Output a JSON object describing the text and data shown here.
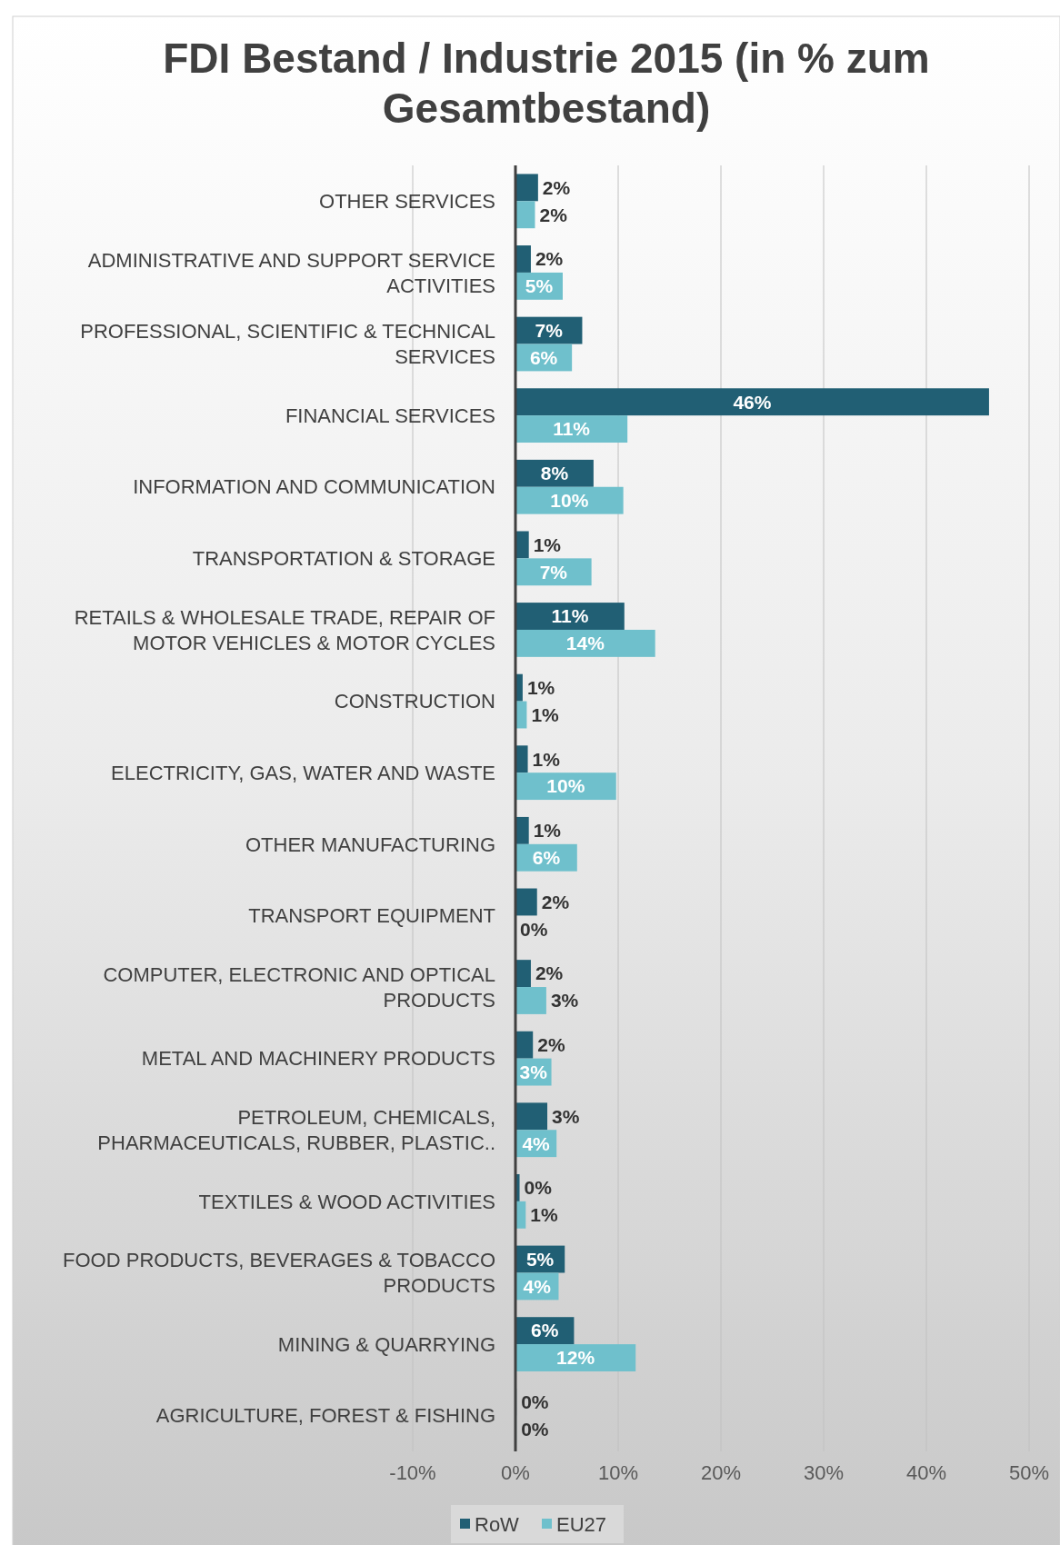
{
  "chart_data": {
    "type": "bar",
    "orientation": "horizontal",
    "title": "FDI Bestand / Industrie 2015 (in % zum Gesamtbestand)",
    "categories": [
      "OTHER SERVICES",
      "ADMINISTRATIVE AND SUPPORT SERVICE ACTIVITIES",
      "PROFESSIONAL, SCIENTIFIC & TECHNICAL SERVICES",
      "FINANCIAL SERVICES",
      "INFORMATION AND COMMUNICATION",
      "TRANSPORTATION & STORAGE",
      "RETAILS & WHOLESALE TRADE, REPAIR OF MOTOR VEHICLES & MOTOR CYCLES",
      "CONSTRUCTION",
      "ELECTRICITY, GAS, WATER AND WASTE",
      "OTHER MANUFACTURING",
      "TRANSPORT EQUIPMENT",
      "COMPUTER, ELECTRONIC AND OPTICAL PRODUCTS",
      "METAL AND MACHINERY PRODUCTS",
      "PETROLEUM, CHEMICALS, PHARMACEUTICALS, RUBBER, PLASTIC..",
      "TEXTILES & WOOD ACTIVITIES",
      "FOOD PRODUCTS, BEVERAGES & TOBACCO PRODUCTS",
      "MINING & QUARRYING",
      "AGRICULTURE, FOREST & FISHING"
    ],
    "series": [
      {
        "name": "RoW",
        "color": "#215f74",
        "values": [
          2.2,
          1.5,
          6.5,
          46.1,
          7.6,
          1.3,
          10.6,
          0.7,
          1.2,
          1.3,
          2.1,
          1.5,
          1.7,
          3.1,
          0.4,
          4.8,
          5.7,
          0.1
        ],
        "value_labels": [
          "2%",
          "2%",
          "7%",
          "46%",
          "8%",
          "1%",
          "11%",
          "1%",
          "1%",
          "1%",
          "2%",
          "2%",
          "2%",
          "3%",
          "0%",
          "5%",
          "6%",
          "0%"
        ]
      },
      {
        "name": "EU27",
        "color": "#6fc0cc",
        "values": [
          1.9,
          4.6,
          5.5,
          10.9,
          10.5,
          7.4,
          13.6,
          1.1,
          9.8,
          6.0,
          0,
          3.0,
          3.5,
          4.0,
          1.0,
          4.2,
          11.7,
          0.1
        ],
        "value_labels": [
          "2%",
          "5%",
          "6%",
          "11%",
          "10%",
          "7%",
          "14%",
          "1%",
          "10%",
          "6%",
          "0%",
          "3%",
          "3%",
          "4%",
          "1%",
          "4%",
          "12%",
          "0%"
        ]
      }
    ],
    "xlim": [
      -10,
      50
    ],
    "xticks": [
      {
        "value": -10,
        "label": "-10%"
      },
      {
        "value": 0,
        "label": "0%"
      },
      {
        "value": 10,
        "label": "10%"
      },
      {
        "value": 20,
        "label": "20%"
      },
      {
        "value": 30,
        "label": "30%"
      },
      {
        "value": 40,
        "label": "40%"
      },
      {
        "value": 50,
        "label": "50%"
      }
    ],
    "grid": "x",
    "legend": "bottom"
  }
}
